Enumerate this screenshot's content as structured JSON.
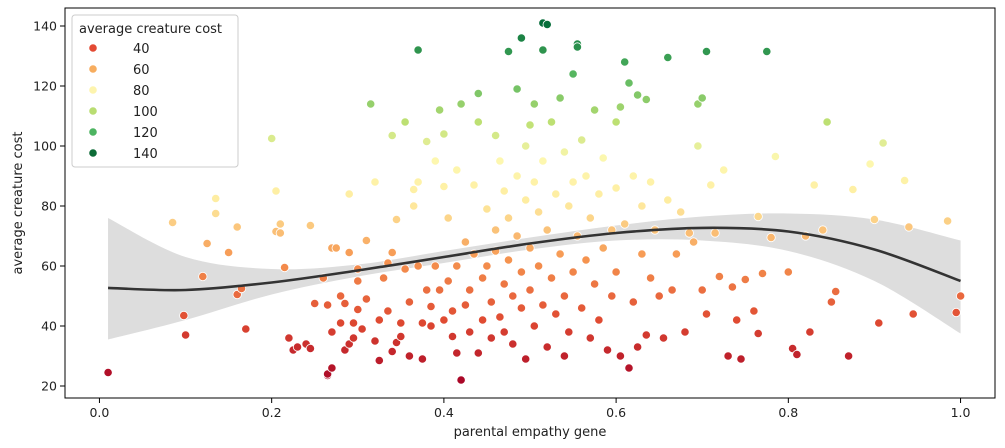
{
  "chart_data": {
    "type": "scatter",
    "xlabel": "parental empathy gene",
    "ylabel": "average creature cost",
    "xlim": [
      -0.04,
      1.04
    ],
    "ylim": [
      16,
      146
    ],
    "x_ticks": [
      "0.0",
      "0.2",
      "0.4",
      "0.6",
      "0.8",
      "1.0"
    ],
    "y_ticks": [
      "20",
      "40",
      "60",
      "80",
      "100",
      "120",
      "140"
    ],
    "grid": false,
    "legend": {
      "title": "average creature cost",
      "placement": "top-left",
      "entries": [
        {
          "label": "40",
          "color": "#e34a33"
        },
        {
          "label": "60",
          "color": "#f7ad5f"
        },
        {
          "label": "80",
          "color": "#fdf4ae"
        },
        {
          "label": "100",
          "color": "#b9dd72"
        },
        {
          "label": "120",
          "color": "#4db461"
        },
        {
          "label": "140",
          "color": "#0d6b37"
        }
      ]
    },
    "hue_range": [
      20,
      142
    ],
    "trend_line": {
      "x": [
        0.01,
        0.1,
        0.2,
        0.3,
        0.4,
        0.5,
        0.6,
        0.7,
        0.8,
        0.9,
        1.0
      ],
      "y": [
        52.7,
        52.0,
        54.5,
        58.5,
        63.0,
        67.5,
        71.0,
        72.7,
        71.5,
        65.5,
        55.0
      ],
      "ci_upper": [
        76,
        63,
        59,
        60.5,
        65,
        69.5,
        73.5,
        76.5,
        77.5,
        75.5,
        68.5
      ],
      "ci_lower": [
        35.5,
        42,
        50.5,
        56.5,
        61,
        65.5,
        68.5,
        68.5,
        65,
        55,
        37.5
      ],
      "color": "#333333",
      "ci_color": "#dddddd"
    },
    "points": [
      [
        0.01,
        24.5
      ],
      [
        0.085,
        74.5
      ],
      [
        0.098,
        43.5
      ],
      [
        0.1,
        37
      ],
      [
        0.12,
        56.5
      ],
      [
        0.125,
        67.5
      ],
      [
        0.135,
        82.5
      ],
      [
        0.135,
        77.5
      ],
      [
        0.15,
        64.5
      ],
      [
        0.16,
        50.5
      ],
      [
        0.16,
        73
      ],
      [
        0.165,
        52.5
      ],
      [
        0.17,
        39
      ],
      [
        0.2,
        102.5
      ],
      [
        0.205,
        71.5
      ],
      [
        0.205,
        85
      ],
      [
        0.21,
        74
      ],
      [
        0.21,
        71
      ],
      [
        0.215,
        59.5
      ],
      [
        0.22,
        36
      ],
      [
        0.225,
        32
      ],
      [
        0.23,
        33
      ],
      [
        0.24,
        34
      ],
      [
        0.245,
        32.5
      ],
      [
        0.245,
        73.5
      ],
      [
        0.25,
        47.5
      ],
      [
        0.26,
        56
      ],
      [
        0.265,
        47
      ],
      [
        0.265,
        23.5
      ],
      [
        0.265,
        24
      ],
      [
        0.27,
        26
      ],
      [
        0.27,
        38
      ],
      [
        0.27,
        66
      ],
      [
        0.275,
        66
      ],
      [
        0.28,
        41
      ],
      [
        0.28,
        50
      ],
      [
        0.285,
        47.5
      ],
      [
        0.285,
        32
      ],
      [
        0.29,
        34
      ],
      [
        0.29,
        84
      ],
      [
        0.29,
        64.5
      ],
      [
        0.295,
        36
      ],
      [
        0.295,
        41
      ],
      [
        0.3,
        45.5
      ],
      [
        0.3,
        55
      ],
      [
        0.3,
        59
      ],
      [
        0.305,
        39
      ],
      [
        0.31,
        49
      ],
      [
        0.31,
        68.5
      ],
      [
        0.315,
        114
      ],
      [
        0.32,
        88
      ],
      [
        0.32,
        35
      ],
      [
        0.325,
        28.5
      ],
      [
        0.325,
        42
      ],
      [
        0.33,
        56
      ],
      [
        0.335,
        61
      ],
      [
        0.335,
        45
      ],
      [
        0.34,
        31.5
      ],
      [
        0.34,
        103.5
      ],
      [
        0.34,
        64.5
      ],
      [
        0.345,
        75.5
      ],
      [
        0.345,
        34.5
      ],
      [
        0.35,
        36.5
      ],
      [
        0.35,
        41
      ],
      [
        0.355,
        108
      ],
      [
        0.355,
        59
      ],
      [
        0.36,
        30
      ],
      [
        0.36,
        48
      ],
      [
        0.365,
        85.5
      ],
      [
        0.365,
        80
      ],
      [
        0.37,
        88
      ],
      [
        0.37,
        60
      ],
      [
        0.37,
        132
      ],
      [
        0.375,
        29
      ],
      [
        0.375,
        41
      ],
      [
        0.38,
        52
      ],
      [
        0.38,
        101.5
      ],
      [
        0.385,
        46.5
      ],
      [
        0.385,
        40
      ],
      [
        0.39,
        95
      ],
      [
        0.39,
        60
      ],
      [
        0.395,
        112
      ],
      [
        0.395,
        52
      ],
      [
        0.4,
        104
      ],
      [
        0.4,
        86.5
      ],
      [
        0.4,
        42
      ],
      [
        0.405,
        76
      ],
      [
        0.405,
        55
      ],
      [
        0.41,
        36.5
      ],
      [
        0.41,
        45
      ],
      [
        0.415,
        92
      ],
      [
        0.415,
        31
      ],
      [
        0.415,
        60
      ],
      [
        0.42,
        114
      ],
      [
        0.42,
        22
      ],
      [
        0.425,
        47
      ],
      [
        0.425,
        68
      ],
      [
        0.43,
        38
      ],
      [
        0.43,
        52
      ],
      [
        0.435,
        87
      ],
      [
        0.435,
        64
      ],
      [
        0.44,
        108
      ],
      [
        0.44,
        117.5
      ],
      [
        0.44,
        31
      ],
      [
        0.445,
        56
      ],
      [
        0.445,
        42
      ],
      [
        0.45,
        79
      ],
      [
        0.45,
        60
      ],
      [
        0.455,
        48
      ],
      [
        0.455,
        36
      ],
      [
        0.46,
        103.5
      ],
      [
        0.46,
        72
      ],
      [
        0.46,
        65
      ],
      [
        0.465,
        95
      ],
      [
        0.465,
        43
      ],
      [
        0.47,
        85
      ],
      [
        0.47,
        54
      ],
      [
        0.47,
        38
      ],
      [
        0.475,
        131.5
      ],
      [
        0.475,
        76
      ],
      [
        0.475,
        62
      ],
      [
        0.48,
        50
      ],
      [
        0.48,
        34
      ],
      [
        0.485,
        119
      ],
      [
        0.485,
        90
      ],
      [
        0.485,
        70
      ],
      [
        0.49,
        136
      ],
      [
        0.49,
        58
      ],
      [
        0.49,
        46
      ],
      [
        0.495,
        100
      ],
      [
        0.495,
        82
      ],
      [
        0.495,
        29
      ],
      [
        0.5,
        107
      ],
      [
        0.5,
        66
      ],
      [
        0.5,
        52
      ],
      [
        0.505,
        114
      ],
      [
        0.505,
        88
      ],
      [
        0.505,
        40
      ],
      [
        0.51,
        78
      ],
      [
        0.51,
        60
      ],
      [
        0.515,
        132
      ],
      [
        0.515,
        141
      ],
      [
        0.515,
        95
      ],
      [
        0.515,
        47
      ],
      [
        0.52,
        140.5
      ],
      [
        0.52,
        72
      ],
      [
        0.52,
        33
      ],
      [
        0.525,
        108
      ],
      [
        0.525,
        56
      ],
      [
        0.53,
        84
      ],
      [
        0.53,
        44
      ],
      [
        0.535,
        116
      ],
      [
        0.535,
        64
      ],
      [
        0.54,
        98
      ],
      [
        0.54,
        50
      ],
      [
        0.54,
        30
      ],
      [
        0.545,
        80
      ],
      [
        0.545,
        38
      ],
      [
        0.55,
        124
      ],
      [
        0.55,
        88
      ],
      [
        0.55,
        58
      ],
      [
        0.555,
        134
      ],
      [
        0.555,
        133
      ],
      [
        0.555,
        70
      ],
      [
        0.56,
        102
      ],
      [
        0.56,
        46
      ],
      [
        0.565,
        90
      ],
      [
        0.565,
        62
      ],
      [
        0.57,
        76
      ],
      [
        0.57,
        36
      ],
      [
        0.575,
        112
      ],
      [
        0.575,
        54
      ],
      [
        0.58,
        84
      ],
      [
        0.58,
        42
      ],
      [
        0.585,
        96
      ],
      [
        0.585,
        66
      ],
      [
        0.59,
        32
      ],
      [
        0.595,
        72
      ],
      [
        0.595,
        50
      ],
      [
        0.6,
        108
      ],
      [
        0.6,
        86
      ],
      [
        0.6,
        58
      ],
      [
        0.605,
        113
      ],
      [
        0.605,
        30
      ],
      [
        0.61,
        128
      ],
      [
        0.61,
        74
      ],
      [
        0.615,
        121
      ],
      [
        0.615,
        26
      ],
      [
        0.62,
        90
      ],
      [
        0.62,
        48
      ],
      [
        0.625,
        117
      ],
      [
        0.625,
        33
      ],
      [
        0.63,
        80
      ],
      [
        0.63,
        64
      ],
      [
        0.635,
        115.5
      ],
      [
        0.635,
        37
      ],
      [
        0.64,
        88
      ],
      [
        0.64,
        56
      ],
      [
        0.645,
        72
      ],
      [
        0.65,
        50
      ],
      [
        0.655,
        36
      ],
      [
        0.66,
        129.5
      ],
      [
        0.66,
        82
      ],
      [
        0.665,
        52
      ],
      [
        0.67,
        64
      ],
      [
        0.675,
        78
      ],
      [
        0.68,
        38
      ],
      [
        0.685,
        71
      ],
      [
        0.69,
        68
      ],
      [
        0.695,
        114
      ],
      [
        0.695,
        100
      ],
      [
        0.7,
        116
      ],
      [
        0.7,
        52
      ],
      [
        0.705,
        131.5
      ],
      [
        0.705,
        44
      ],
      [
        0.71,
        87
      ],
      [
        0.715,
        71
      ],
      [
        0.72,
        56.5
      ],
      [
        0.725,
        92
      ],
      [
        0.73,
        30
      ],
      [
        0.735,
        53
      ],
      [
        0.74,
        42
      ],
      [
        0.745,
        29
      ],
      [
        0.75,
        55.5
      ],
      [
        0.76,
        45
      ],
      [
        0.765,
        76.5
      ],
      [
        0.765,
        37.5
      ],
      [
        0.77,
        57.5
      ],
      [
        0.775,
        131.5
      ],
      [
        0.78,
        69.5
      ],
      [
        0.785,
        96.5
      ],
      [
        0.8,
        58
      ],
      [
        0.805,
        32.5
      ],
      [
        0.81,
        30.5
      ],
      [
        0.82,
        70
      ],
      [
        0.825,
        38
      ],
      [
        0.83,
        87
      ],
      [
        0.84,
        72
      ],
      [
        0.845,
        108
      ],
      [
        0.85,
        48
      ],
      [
        0.855,
        51.5
      ],
      [
        0.87,
        30
      ],
      [
        0.875,
        85.5
      ],
      [
        0.895,
        94
      ],
      [
        0.9,
        75.5
      ],
      [
        0.905,
        41
      ],
      [
        0.91,
        101
      ],
      [
        0.935,
        88.5
      ],
      [
        0.94,
        73
      ],
      [
        0.945,
        44
      ],
      [
        0.985,
        75
      ],
      [
        0.995,
        44.5
      ],
      [
        1.0,
        50
      ]
    ]
  }
}
